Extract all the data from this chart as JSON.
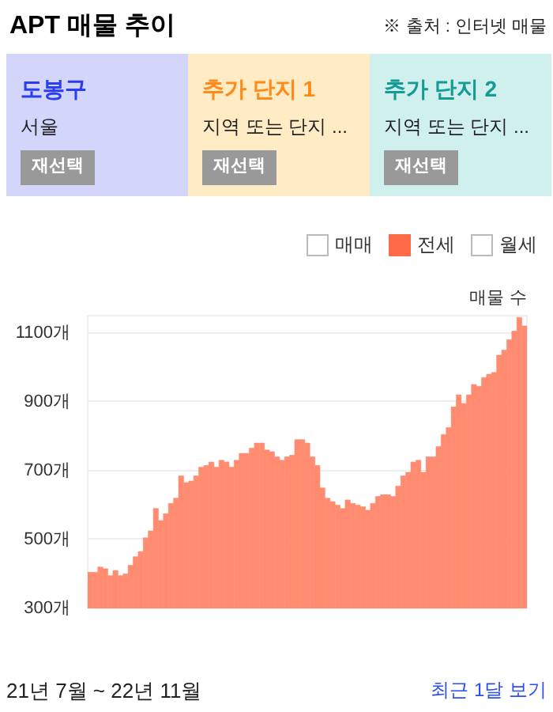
{
  "chart_data": {
    "type": "bar",
    "title": "APT 매물 추이",
    "ylabel": "매물 수",
    "annotations": [
      "※ 출처 : 인터넷 매물",
      "도봉구",
      "서울",
      "재선택",
      "추가 단지 1",
      "지역 또는 단지 ...",
      "재선택",
      "추가 단지 2",
      "지역 또는 단지 ...",
      "재선택",
      "매매",
      "월세",
      "21년 7월 ~ 22년 11월",
      "최근 1달 보기"
    ],
    "categories": [
      null,
      null,
      null,
      null,
      null,
      null,
      null,
      null,
      null,
      null,
      null,
      null,
      null,
      null,
      null,
      null,
      null,
      null,
      null,
      null,
      null,
      null,
      null,
      null,
      null,
      null,
      null,
      null,
      null,
      null,
      null,
      null,
      null,
      null,
      null,
      null,
      null,
      null,
      null,
      null,
      null,
      null,
      null,
      null,
      null,
      null,
      null,
      null,
      null,
      null,
      null,
      null,
      null,
      null,
      null,
      null,
      null,
      null,
      null,
      null,
      null,
      null,
      null,
      null,
      null,
      null,
      null,
      null,
      null,
      null,
      null,
      null,
      null,
      null,
      null,
      null,
      null,
      null,
      null,
      null,
      null,
      null,
      null,
      null,
      null,
      null,
      null
    ],
    "series": [
      {
        "name": "전세",
        "color": "#ff8c70",
        "values": [
          405,
          405,
          420,
          415,
          395,
          410,
          395,
          400,
          425,
          450,
          465,
          505,
          525,
          590,
          555,
          575,
          605,
          620,
          685,
          665,
          670,
          685,
          710,
          715,
          725,
          710,
          730,
          725,
          710,
          730,
          750,
          750,
          765,
          780,
          780,
          760,
          755,
          740,
          730,
          740,
          745,
          790,
          790,
          780,
          740,
          715,
          650,
          620,
          610,
          600,
          590,
          615,
          605,
          600,
          595,
          585,
          605,
          625,
          630,
          630,
          625,
          655,
          685,
          695,
          725,
          730,
          695,
          740,
          740,
          770,
          805,
          825,
          885,
          920,
          895,
          920,
          950,
          945,
          970,
          980,
          985,
          1035,
          1050,
          1080,
          1105,
          1145,
          1120
        ]
      }
    ],
    "ylim": [
      300,
      1150
    ],
    "yticks": [
      {
        "value": 300,
        "label": "300개"
      },
      {
        "value": 500,
        "label": "500개"
      },
      {
        "value": 700,
        "label": "700개"
      },
      {
        "value": 900,
        "label": "900개"
      },
      {
        "value": 1100,
        "label": "1100개"
      }
    ],
    "grid": "y",
    "legend": "top right",
    "tick_labels": "y"
  }
}
